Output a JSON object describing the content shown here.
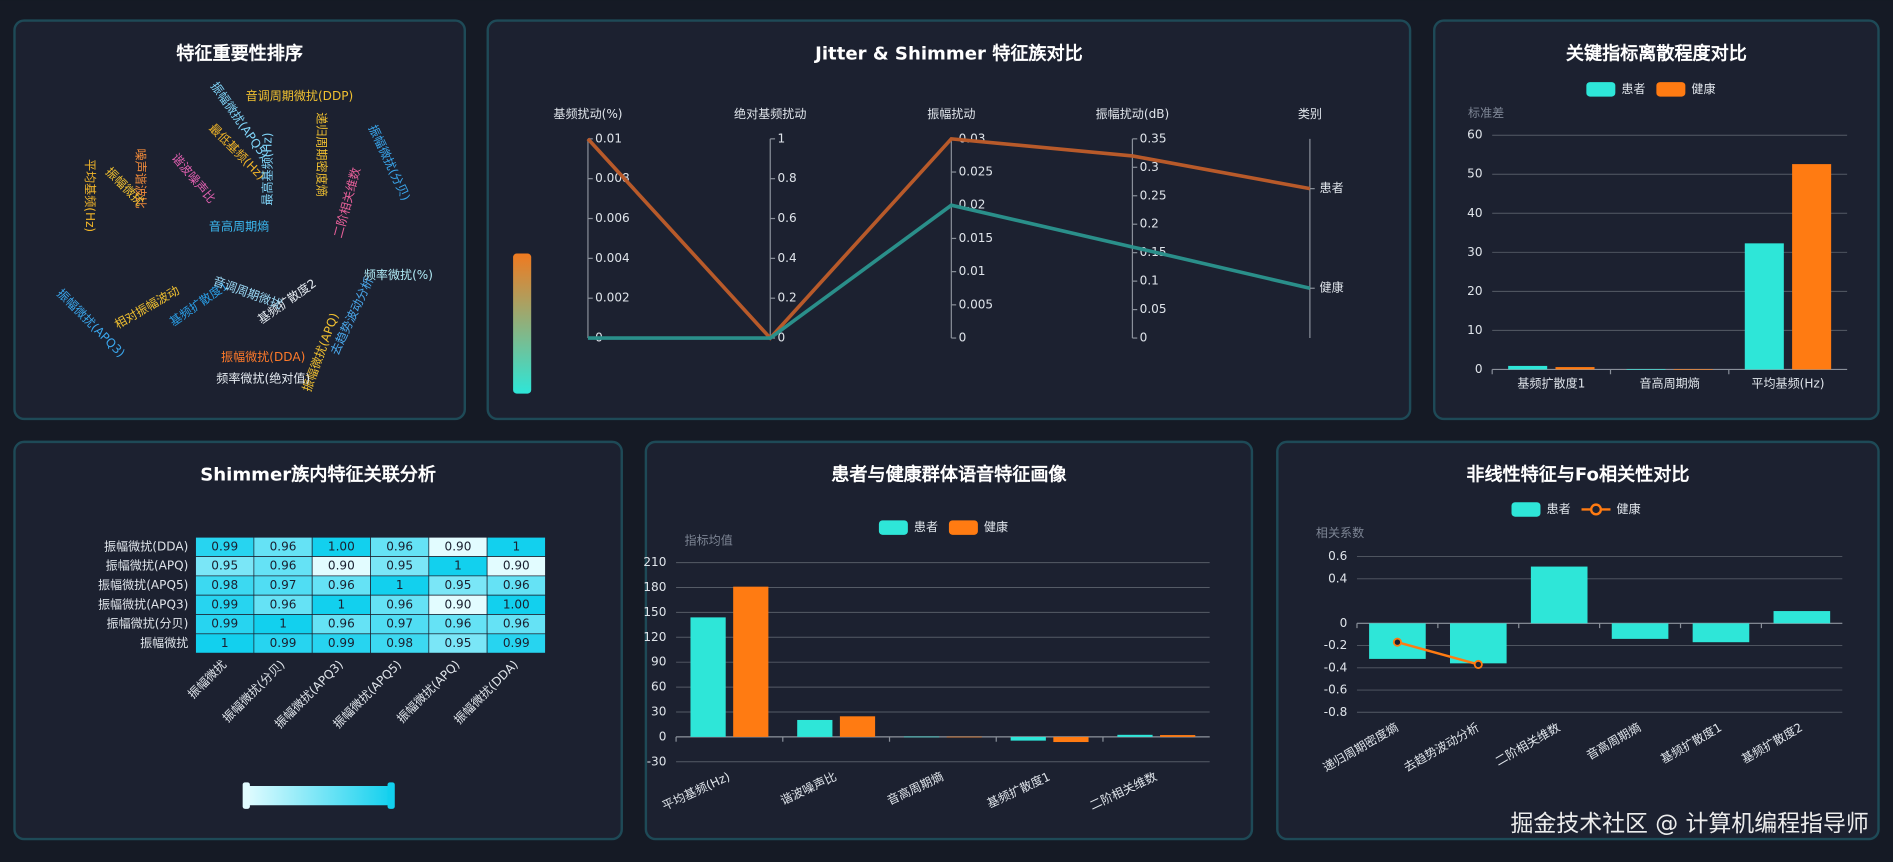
{
  "chart_data": [
    {
      "type": "wordcloud",
      "title": "特征重要性排序",
      "words": [
        {
          "name": "音高周期熵",
          "value": 38,
          "color": "#3bb8f0"
        },
        {
          "name": "平均基频(Hz)",
          "value": 28,
          "color": "#f0b429"
        },
        {
          "name": "基频扩散度1",
          "value": 26,
          "color": "#2a9ee6"
        },
        {
          "name": "最低基频(Hz)",
          "value": 20,
          "color": "#f0b429"
        },
        {
          "name": "基频扩散度2",
          "value": 17,
          "color": "#e6ecf2"
        },
        {
          "name": "振幅微扰(APQ5)",
          "value": 12,
          "color": "#7fd3f7"
        },
        {
          "name": "音调周期微扰(DDP)",
          "value": 11,
          "color": "#f0c030"
        },
        {
          "name": "递归周期密度熵",
          "value": 12,
          "color": "#f0c030"
        },
        {
          "name": "二阶相关维数",
          "value": 12,
          "color": "#e8609a"
        },
        {
          "name": "振幅微扰(分贝)",
          "value": 11,
          "color": "#3aa6ec"
        },
        {
          "name": "频率微扰(%)",
          "value": 11,
          "color": "#b0eaf5"
        },
        {
          "name": "去趋势波动分析",
          "value": 10,
          "color": "#4aa8ec"
        },
        {
          "name": "振幅微扰(APQ)",
          "value": 12,
          "color": "#f0c030"
        },
        {
          "name": "振幅微扰(DDA)",
          "value": 12,
          "color": "#ff7a2a"
        },
        {
          "name": "频率微扰(绝对值)",
          "value": 11,
          "color": "#e6ecf2"
        },
        {
          "name": "音调周期微扰",
          "value": 10,
          "color": "#9ad8f5"
        },
        {
          "name": "振幅微扰(APQ3)",
          "value": 11,
          "color": "#3aa6ec"
        },
        {
          "name": "相对振幅波动",
          "value": 10,
          "color": "#f0c030"
        },
        {
          "name": "噪声谐波比",
          "value": 13,
          "color": "#f08a3a"
        },
        {
          "name": "谐波噪声比",
          "value": 11,
          "color": "#e060b0"
        },
        {
          "name": "最高基频(Hz)",
          "value": 13,
          "color": "#7fd3f7"
        },
        {
          "name": "振幅微扰",
          "value": 10,
          "color": "#f0c030"
        }
      ]
    },
    {
      "type": "parallel",
      "title": "Jitter & Shimmer 特征族对比",
      "axes": [
        {
          "name": "基频扰动(%)",
          "ylim": [
            0,
            0.01
          ],
          "yticks": [
            0,
            0.002,
            0.004,
            0.006,
            0.008,
            0.01
          ]
        },
        {
          "name": "绝对基频扰动",
          "ylim": [
            0,
            1
          ],
          "yticks": [
            0,
            0.2,
            0.4,
            0.6,
            0.8,
            1
          ]
        },
        {
          "name": "振幅扰动",
          "ylim": [
            0,
            0.03
          ],
          "yticks": [
            0,
            0.005,
            0.01,
            0.015,
            0.02,
            0.025,
            0.03
          ]
        },
        {
          "name": "振幅扰动(dB)",
          "ylim": [
            0,
            0.35
          ],
          "yticks": [
            0,
            0.05,
            0.1,
            0.15,
            0.2,
            0.25,
            0.3,
            0.35
          ]
        },
        {
          "name": "类别"
        }
      ],
      "series": [
        {
          "name": "患者",
          "color": "#b85a2a",
          "values": [
            0.01,
            0,
            0.03,
            0.32
          ]
        },
        {
          "name": "健康",
          "color": "#2a8f8a",
          "values": [
            0,
            0,
            0.02,
            0.16
          ]
        }
      ]
    },
    {
      "type": "bar",
      "title": "关键指标离散程度对比",
      "y_label": "标准差",
      "categories": [
        "基频扩散度1",
        "音高周期熵",
        "平均基频(Hz)"
      ],
      "series": [
        {
          "name": "患者",
          "color": "#2ee6d8",
          "values": [
            0.9,
            0.05,
            32.3
          ]
        },
        {
          "name": "健康",
          "color": "#ff7b12",
          "values": [
            0.6,
            0.03,
            52.6
          ]
        }
      ],
      "ylim": [
        0,
        60
      ],
      "yticks": [
        0,
        10,
        20,
        30,
        40,
        50,
        60
      ],
      "grid": true,
      "legend": "top"
    },
    {
      "type": "heatmap",
      "title": "Shimmer族内特征关联分析",
      "x_categories": [
        "振幅微扰",
        "振幅微扰(分贝)",
        "振幅微扰(APQ3)",
        "振幅微扰(APQ5)",
        "振幅微扰(APQ)",
        "振幅微扰(DDA)"
      ],
      "y_categories": [
        "振幅微扰(DDA)",
        "振幅微扰(APQ)",
        "振幅微扰(APQ5)",
        "振幅微扰(APQ3)",
        "振幅微扰(分贝)",
        "振幅微扰"
      ],
      "values": [
        [
          0.99,
          0.96,
          1,
          0.96,
          0.9,
          1
        ],
        [
          0.95,
          0.96,
          0.9,
          0.95,
          1,
          0.9
        ],
        [
          0.98,
          0.97,
          0.96,
          1,
          0.95,
          0.96
        ],
        [
          0.99,
          0.96,
          1,
          0.96,
          0.9,
          1
        ],
        [
          0.99,
          1,
          0.96,
          0.97,
          0.96,
          0.96
        ],
        [
          1,
          0.99,
          0.99,
          0.98,
          0.95,
          0.99
        ]
      ],
      "value_labels": [
        [
          "0.99",
          "0.96",
          "1.00",
          "0.96",
          "0.90",
          "1"
        ],
        [
          "0.95",
          "0.96",
          "0.90",
          "0.95",
          "1",
          "0.90"
        ],
        [
          "0.98",
          "0.97",
          "0.96",
          "1",
          "0.95",
          "0.96"
        ],
        [
          "0.99",
          "0.96",
          "1",
          "0.96",
          "0.90",
          "1.00"
        ],
        [
          "0.99",
          "1",
          "0.96",
          "0.97",
          "0.96",
          "0.96"
        ],
        [
          "1",
          "0.99",
          "0.99",
          "0.98",
          "0.95",
          "0.99"
        ]
      ],
      "color_range": [
        "#e2fcff",
        "#12d0ee"
      ]
    },
    {
      "type": "bar",
      "title": "患者与健康群体语音特征画像",
      "y_label": "指标均值",
      "categories": [
        "平均基频(Hz)",
        "谐波噪声比",
        "音高周期熵",
        "基频扩散度1",
        "二阶相关维数"
      ],
      "series": [
        {
          "name": "患者",
          "color": "#2ee6d8",
          "values": [
            144,
            20.4,
            0.3,
            -4.5,
            2.5
          ]
        },
        {
          "name": "健康",
          "color": "#ff7b12",
          "values": [
            181,
            24.8,
            0.2,
            -6.2,
            2.2
          ]
        }
      ],
      "ylim": [
        -30,
        210
      ],
      "yticks": [
        -30,
        0,
        30,
        60,
        90,
        120,
        150,
        180,
        210
      ],
      "grid": true,
      "legend": "top"
    },
    {
      "type": "bar",
      "title": "非线性特征与Fo相关性对比",
      "y_label": "相关系数",
      "categories": [
        "递归周期密度熵",
        "去趋势波动分析",
        "二阶相关维数",
        "音高周期熵",
        "基频扩散度1",
        "基频扩散度2"
      ],
      "series": [
        {
          "name": "患者",
          "color": "#2ee6d8",
          "values": [
            -0.32,
            -0.36,
            0.51,
            -0.14,
            -0.17,
            0.11
          ]
        },
        {
          "name": "健康",
          "color": "#ff7b12",
          "type": "line",
          "values": [
            -0.17,
            -0.37,
            null,
            null,
            null,
            null
          ]
        }
      ],
      "ylim": [
        -0.8,
        0.6
      ],
      "yticks": [
        0.6,
        0.4,
        0,
        -0.2,
        -0.4,
        -0.6,
        -0.8
      ],
      "grid": true,
      "legend": "top"
    }
  ],
  "watermark": "掘金技术社区 @ 计算机编程指导师"
}
